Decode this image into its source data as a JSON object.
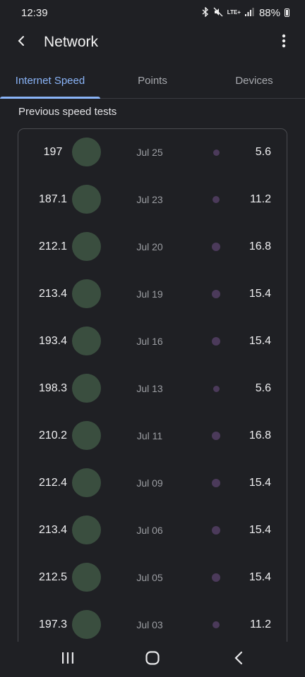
{
  "status_bar": {
    "time": "12:39",
    "lte": "LTE+",
    "battery": "88%"
  },
  "app_bar": {
    "title": "Network"
  },
  "tabs": [
    {
      "label": "Internet Speed",
      "active": true
    },
    {
      "label": "Points",
      "active": false
    },
    {
      "label": "Devices",
      "active": false
    }
  ],
  "section_title": "Previous speed tests",
  "tests": [
    {
      "speed": "197",
      "date": "Jul 25",
      "value": "5.6"
    },
    {
      "speed": "187.1",
      "date": "Jul 23",
      "value": "11.2"
    },
    {
      "speed": "212.1",
      "date": "Jul 20",
      "value": "16.8"
    },
    {
      "speed": "213.4",
      "date": "Jul 19",
      "value": "15.4"
    },
    {
      "speed": "193.4",
      "date": "Jul 16",
      "value": "15.4"
    },
    {
      "speed": "198.3",
      "date": "Jul 13",
      "value": "5.6"
    },
    {
      "speed": "210.2",
      "date": "Jul 11",
      "value": "16.8"
    },
    {
      "speed": "212.4",
      "date": "Jul 09",
      "value": "15.4"
    },
    {
      "speed": "213.4",
      "date": "Jul 06",
      "value": "15.4"
    },
    {
      "speed": "212.5",
      "date": "Jul 05",
      "value": "15.4"
    },
    {
      "speed": "197.3",
      "date": "Jul 03",
      "value": "11.2"
    }
  ],
  "colors": {
    "accent": "#8ab4f8",
    "background": "#1f2024",
    "speed_circle": "#3a4e3f",
    "dot": "#4b3a5a"
  }
}
